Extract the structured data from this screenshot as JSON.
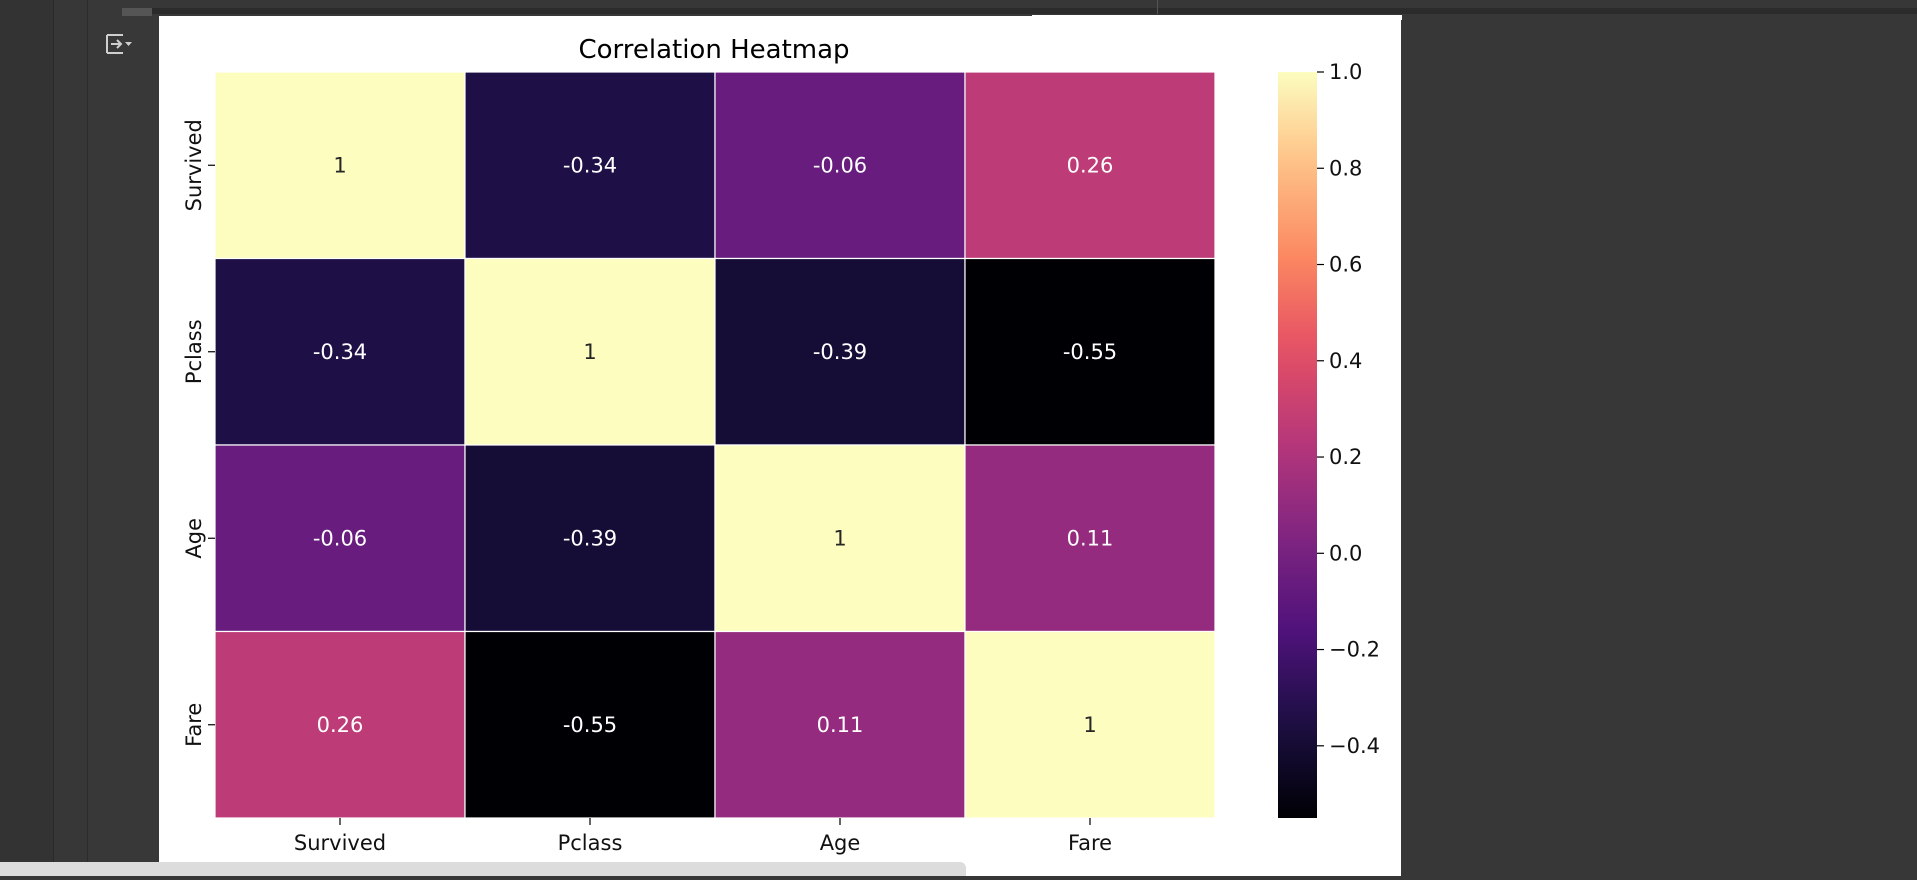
{
  "toolbar": {
    "output_icon": "expand-output-icon"
  },
  "chart_data": {
    "type": "heatmap",
    "title": "Correlation Heatmap",
    "x_labels": [
      "Survived",
      "Pclass",
      "Age",
      "Fare"
    ],
    "y_labels": [
      "Survived",
      "Pclass",
      "Age",
      "Fare"
    ],
    "values": [
      [
        1,
        -0.34,
        -0.06,
        0.26
      ],
      [
        -0.34,
        1,
        -0.39,
        -0.55
      ],
      [
        -0.06,
        -0.39,
        1,
        0.11
      ],
      [
        0.26,
        -0.55,
        0.11,
        1
      ]
    ],
    "annotations": [
      [
        "1",
        "-0.34",
        "-0.06",
        "0.26"
      ],
      [
        "-0.34",
        "1",
        "-0.39",
        "-0.55"
      ],
      [
        "-0.06",
        "-0.39",
        "1",
        "0.11"
      ],
      [
        "0.26",
        "-0.55",
        "0.11",
        "1"
      ]
    ],
    "colormap": "magma",
    "vmin": -0.55,
    "vmax": 1.0,
    "colorbar_ticks": [
      1.0,
      0.8,
      0.6,
      0.4,
      0.2,
      0.0,
      -0.2,
      -0.4
    ],
    "colorbar_tick_labels": [
      "1.0",
      "0.8",
      "0.6",
      "0.4",
      "0.2",
      "0.0",
      "−0.2",
      "−0.4"
    ]
  }
}
